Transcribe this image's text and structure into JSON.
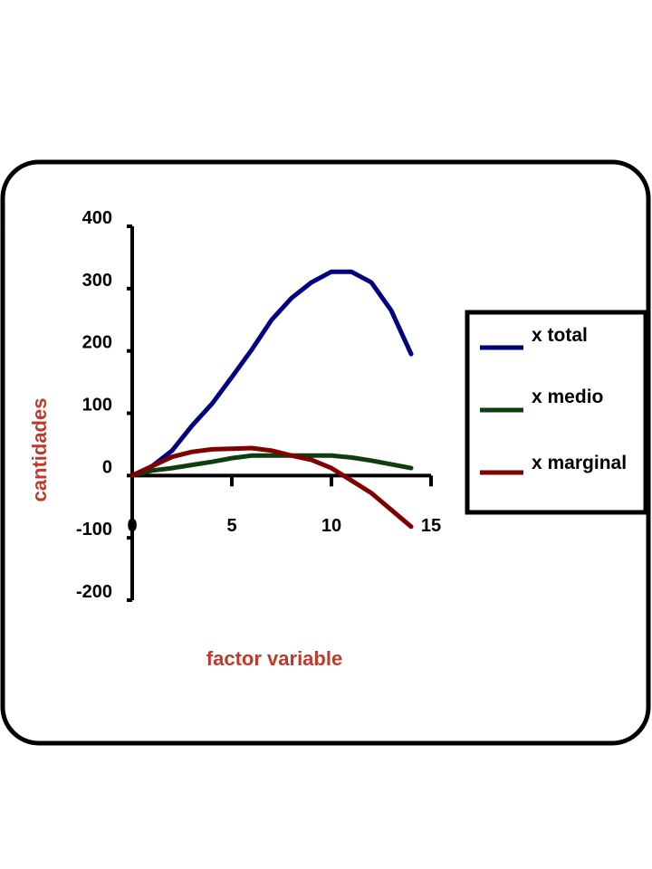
{
  "chart_data": {
    "type": "line",
    "title": "",
    "xlabel": "factor variable",
    "ylabel": "cantidades",
    "xlim": [
      0,
      15
    ],
    "ylim": [
      -200,
      400
    ],
    "xticks": [
      0,
      5,
      10,
      15
    ],
    "yticks": [
      400,
      300,
      200,
      100,
      0,
      -100,
      -200
    ],
    "xtick_labels": [
      "0",
      "5",
      "10",
      "15"
    ],
    "ytick_labels": [
      "400",
      "300",
      "200",
      "100",
      "0",
      "-100",
      "-200"
    ],
    "grid": false,
    "legend_position": "right",
    "series": [
      {
        "name": "x total",
        "color": "#000080",
        "x": [
          0,
          1,
          2,
          3,
          4,
          5,
          6,
          7,
          8,
          9,
          10,
          11,
          12,
          13,
          14
        ],
        "y": [
          0,
          15,
          40,
          80,
          115,
          158,
          202,
          250,
          285,
          310,
          327,
          327,
          310,
          265,
          195
        ]
      },
      {
        "name": "x medio",
        "color": "#0f3d0f",
        "x": [
          0,
          1,
          2,
          3,
          4,
          5,
          6,
          7,
          8,
          9,
          10,
          11,
          12,
          13,
          14
        ],
        "y": [
          0,
          8,
          12,
          17,
          22,
          28,
          32,
          32,
          32,
          32,
          32,
          29,
          24,
          18,
          12
        ]
      },
      {
        "name": "x marginal",
        "color": "#800000",
        "x": [
          0,
          1,
          2,
          3,
          4,
          5,
          6,
          7,
          8,
          9,
          10,
          11,
          12,
          13,
          14
        ],
        "y": [
          0,
          15,
          30,
          38,
          42,
          43,
          44,
          40,
          32,
          25,
          12,
          -8,
          -28,
          -55,
          -82
        ]
      }
    ]
  },
  "colors": {
    "axis_title": "#c0392b",
    "frame": "#000000",
    "axis": "#000000"
  }
}
